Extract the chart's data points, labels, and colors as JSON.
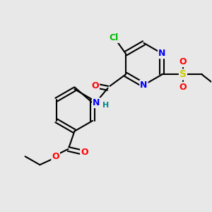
{
  "background_color": "#e8e8e8",
  "bond_color": "#000000",
  "atom_colors": {
    "N": "#0000ff",
    "O": "#ff0000",
    "Cl": "#00bb00",
    "S": "#cccc00",
    "H": "#008888",
    "C": "#000000"
  },
  "figsize": [
    3.0,
    3.0
  ],
  "dpi": 100
}
